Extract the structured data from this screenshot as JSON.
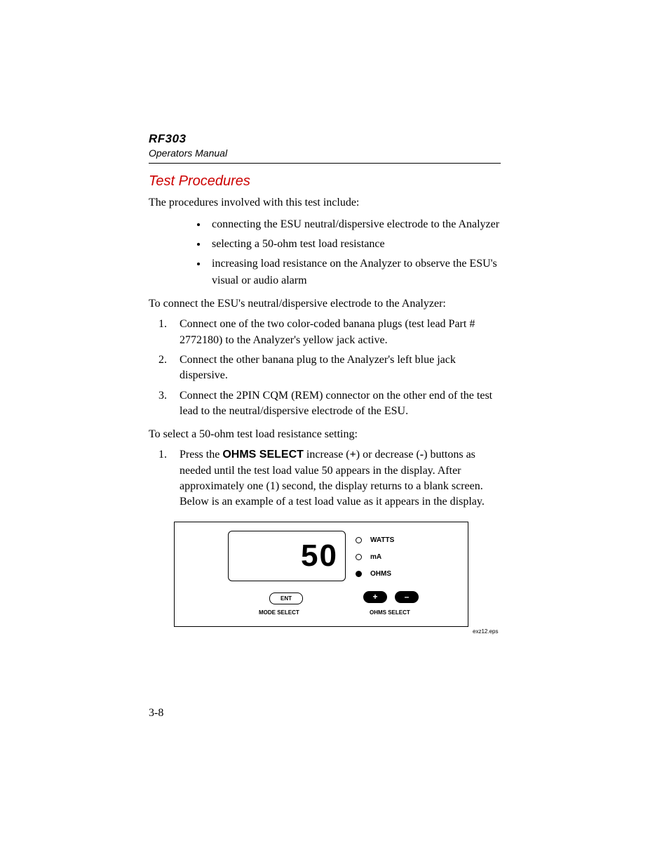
{
  "header": {
    "model": "RF303",
    "subtitle": "Operators Manual"
  },
  "section_title": "Test Procedures",
  "intro": "The procedures involved with this test include:",
  "bullets": [
    "connecting the ESU neutral/dispersive electrode to the Analyzer",
    "selecting a 50-ohm test load resistance",
    "increasing load resistance on the Analyzer to observe the ESU's visual or audio alarm"
  ],
  "connect_intro": "To connect the ESU's neutral/dispersive electrode to the Analyzer:",
  "connect_steps": [
    "Connect one of the two color-coded banana plugs (test lead Part # 2772180) to the Analyzer's yellow jack active.",
    "Connect the other banana plug to the Analyzer's left blue jack dispersive.",
    "Connect the 2PIN CQM (REM) connector on the other end of the test lead to the neutral/dispersive electrode of the ESU."
  ],
  "select_intro": "To select a 50-ohm test load resistance setting:",
  "select_step": {
    "prefix": "Press the ",
    "bold": "OHMS SELECT",
    "middle": " increase (",
    "plus": "+",
    "mid2": ") or decrease (",
    "minus": "-",
    "suffix": ") buttons as needed until the test load value 50 appears in the display. After approximately one (1) second, the display returns to a blank screen. Below is an example of a test load value as it appears in the display."
  },
  "panel": {
    "display_value": "50",
    "indicators": [
      {
        "label": "WATTS",
        "on": false
      },
      {
        "label": "mA",
        "on": false
      },
      {
        "label": "OHMS",
        "on": true
      }
    ],
    "ent_label": "ENT",
    "mode_select_label": "MODE SELECT",
    "ohms_select_label": "OHMS SELECT",
    "plus": "+",
    "minus": "–",
    "caption": "exz12.eps",
    "colors": {
      "panel_border": "#000000",
      "pill_bg": "#000000",
      "pill_fg": "#ffffff",
      "title_red": "#cc0000"
    }
  },
  "page_number": "3-8"
}
